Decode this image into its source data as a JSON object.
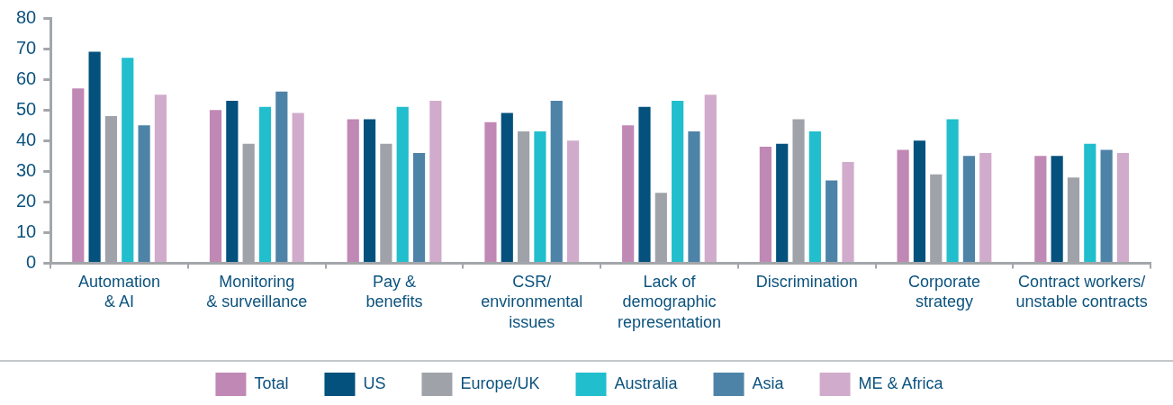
{
  "chart_data": {
    "type": "bar",
    "categories": [
      "Automation\n& AI",
      "Monitoring\n& surveillance",
      "Pay &\nbenefits",
      "CSR/\nenvironmental\nissues",
      "Lack of\ndemographic\nrepresentation",
      "Discrimination",
      "Corporate\nstrategy",
      "Contract workers/\nunstable contracts"
    ],
    "series": [
      {
        "name": "Total",
        "color": "#c088b4",
        "values": [
          57,
          50,
          47,
          46,
          45,
          38,
          37,
          35
        ]
      },
      {
        "name": "US",
        "color": "#03517c",
        "values": [
          69,
          53,
          47,
          49,
          51,
          39,
          40,
          35
        ]
      },
      {
        "name": "Europe/UK",
        "color": "#9fa3a9",
        "values": [
          48,
          39,
          39,
          43,
          23,
          47,
          29,
          28
        ]
      },
      {
        "name": "Australia",
        "color": "#21becd",
        "values": [
          67,
          51,
          51,
          43,
          53,
          43,
          47,
          39
        ]
      },
      {
        "name": "Asia",
        "color": "#4e83a8",
        "values": [
          45,
          56,
          36,
          53,
          43,
          27,
          35,
          37
        ]
      },
      {
        "name": "ME & Africa",
        "color": "#d1abcb",
        "values": [
          55,
          49,
          53,
          40,
          55,
          33,
          36,
          36
        ]
      }
    ],
    "ylim": [
      0,
      80
    ],
    "yticks": [
      0,
      10,
      20,
      30,
      40,
      50,
      60,
      70,
      80
    ],
    "grid": false,
    "legend": "bottom"
  }
}
